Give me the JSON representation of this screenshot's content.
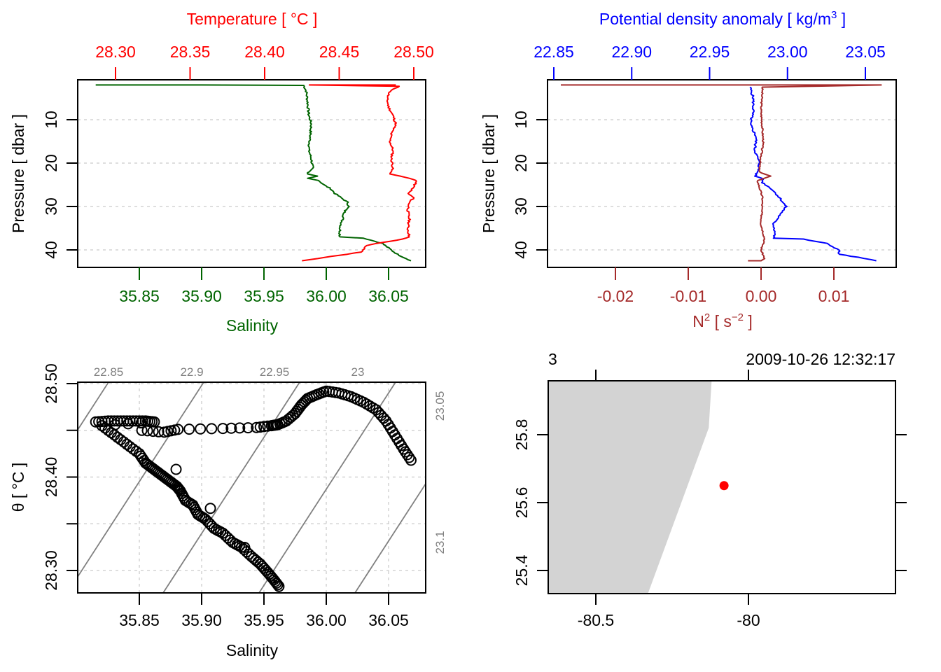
{
  "colors": {
    "temperature": "#ff0000",
    "salinity": "#006400",
    "density": "#0000ff",
    "n2": "#a52a2a",
    "isopycnal": "#808080",
    "land": "#d3d3d3",
    "station": "#ff0000",
    "grid": "#d3d3d3",
    "axis": "#000000"
  },
  "chart_data": [
    {
      "id": "ts-profile",
      "type": "line",
      "title": "",
      "top_axis": {
        "label": "Temperature [ °C ]",
        "ticks": [
          "28.30",
          "28.35",
          "28.40",
          "28.45",
          "28.50"
        ],
        "range": [
          28.275,
          28.507
        ]
      },
      "bottom_axis": {
        "label": "Salinity",
        "ticks": [
          "35.85",
          "35.90",
          "35.95",
          "36.00",
          "36.05"
        ],
        "range": [
          35.807,
          36.081
        ]
      },
      "y_axis": {
        "label": "Pressure [ dbar ]",
        "ticks": [
          "10",
          "20",
          "30",
          "40"
        ],
        "range": [
          1.0,
          43.8
        ],
        "reversed": true
      },
      "grid": "horizontal-dashed",
      "series": [
        {
          "name": "Temperature",
          "color_key": "temperature",
          "x_axis": "top",
          "points": [
            [
              28.488,
              2.0
            ],
            [
              28.45,
              2.0
            ],
            [
              28.43,
              2.0
            ],
            [
              28.49,
              2.3
            ],
            [
              28.484,
              3.5
            ],
            [
              28.482,
              5
            ],
            [
              28.483,
              7
            ],
            [
              28.486,
              9
            ],
            [
              28.488,
              11
            ],
            [
              28.485,
              13
            ],
            [
              28.484,
              15
            ],
            [
              28.486,
              17
            ],
            [
              28.485,
              19
            ],
            [
              28.486,
              21
            ],
            [
              28.484,
              22.5
            ],
            [
              28.491,
              23
            ],
            [
              28.497,
              23.5
            ],
            [
              28.502,
              24
            ],
            [
              28.499,
              26
            ],
            [
              28.496,
              27
            ],
            [
              28.5,
              28
            ],
            [
              28.497,
              29
            ],
            [
              28.496,
              31
            ],
            [
              28.497,
              33
            ],
            [
              28.496,
              35
            ],
            [
              28.497,
              37
            ],
            [
              28.493,
              37.5
            ],
            [
              28.475,
              38.5
            ],
            [
              28.468,
              39
            ],
            [
              28.465,
              40.5
            ],
            [
              28.445,
              41.5
            ],
            [
              28.425,
              42.5
            ]
          ]
        },
        {
          "name": "Salinity",
          "color_key": "salinity",
          "x_axis": "bottom",
          "points": [
            [
              35.815,
              2.0
            ],
            [
              35.9,
              2.0
            ],
            [
              35.982,
              2.1
            ],
            [
              35.984,
              3.5
            ],
            [
              35.985,
              6
            ],
            [
              35.986,
              9
            ],
            [
              35.988,
              11
            ],
            [
              35.987,
              14
            ],
            [
              35.986,
              17
            ],
            [
              35.988,
              19
            ],
            [
              35.989,
              21
            ],
            [
              35.985,
              22.5
            ],
            [
              35.993,
              23
            ],
            [
              35.985,
              23.5
            ],
            [
              35.994,
              24
            ],
            [
              35.998,
              25
            ],
            [
              36.004,
              26
            ],
            [
              36.007,
              27
            ],
            [
              36.012,
              28
            ],
            [
              36.017,
              29
            ],
            [
              36.018,
              30
            ],
            [
              36.015,
              31
            ],
            [
              36.013,
              33
            ],
            [
              36.011,
              35
            ],
            [
              36.011,
              37
            ],
            [
              36.03,
              37.3
            ],
            [
              36.045,
              38.5
            ],
            [
              36.052,
              40
            ],
            [
              36.057,
              41
            ],
            [
              36.068,
              42.5
            ]
          ]
        }
      ]
    },
    {
      "id": "density-n2-profile",
      "type": "line",
      "title": "",
      "top_axis": {
        "label": "Potential density anomaly [ kg/m³ ]",
        "label_parts": {
          "main": "Potential density anomaly [ kg/m",
          "sup": "3",
          "tail": " ]"
        },
        "ticks": [
          "22.85",
          "22.90",
          "22.95",
          "23.00",
          "23.05"
        ],
        "range": [
          22.848,
          23.06
        ]
      },
      "bottom_axis": {
        "label": "N² [ s⁻² ]",
        "label_parts": {
          "main": "N",
          "sup": "2",
          "mid": " [ s",
          "sup2": "−2",
          "tail": " ]"
        },
        "ticks": [
          "-0.02",
          "-0.01",
          "0.00",
          "0.01"
        ],
        "range": [
          -0.0294,
          0.0165
        ]
      },
      "y_axis": {
        "label": "Pressure [ dbar ]",
        "ticks": [
          "10",
          "20",
          "30",
          "40"
        ],
        "range": [
          1.0,
          43.8
        ],
        "reversed": true
      },
      "grid": "horizontal-dashed",
      "series": [
        {
          "name": "Potential density anomaly",
          "color_key": "density",
          "x_axis": "top",
          "points": [
            [
              22.976,
              2.5
            ],
            [
              22.978,
              5
            ],
            [
              22.978,
              8
            ],
            [
              22.976,
              11
            ],
            [
              22.98,
              14
            ],
            [
              22.979,
              17
            ],
            [
              22.982,
              20
            ],
            [
              22.981,
              22
            ],
            [
              22.979,
              23
            ],
            [
              22.984,
              23.5
            ],
            [
              22.984,
              24.5
            ],
            [
              22.99,
              26
            ],
            [
              22.995,
              28
            ],
            [
              22.999,
              30
            ],
            [
              22.995,
              32
            ],
            [
              22.991,
              34
            ],
            [
              22.992,
              36
            ],
            [
              22.991,
              37.3
            ],
            [
              23.01,
              37.5
            ],
            [
              23.025,
              38.5
            ],
            [
              23.033,
              40
            ],
            [
              23.033,
              41
            ],
            [
              23.045,
              41.7
            ],
            [
              23.057,
              42.5
            ]
          ]
        },
        {
          "name": "N2",
          "color_key": "n2",
          "x_axis": "bottom",
          "points": [
            [
              -0.0275,
              2.0
            ],
            [
              0.0165,
              2.0
            ],
            [
              0.0002,
              2.5
            ],
            [
              0.0,
              8
            ],
            [
              0.0003,
              15
            ],
            [
              -0.0003,
              22
            ],
            [
              0.0013,
              23
            ],
            [
              -0.0005,
              24
            ],
            [
              0.0002,
              28
            ],
            [
              0.0,
              34
            ],
            [
              0.0005,
              37.5
            ],
            [
              0.0,
              40
            ],
            [
              0.0005,
              42
            ],
            [
              0.0,
              42.5
            ],
            [
              -0.0018,
              42.5
            ]
          ]
        }
      ]
    },
    {
      "id": "ts-diagram",
      "type": "scatter",
      "title": "",
      "xlabel": "Salinity",
      "ylabel": "θ [ °C ]",
      "x_ticks": [
        "35.85",
        "35.90",
        "35.95",
        "36.00",
        "36.05"
      ],
      "y_ticks": [
        "28.30",
        "28.40",
        "28.50"
      ],
      "y_minor_ticks": [
        "28.35",
        "28.45"
      ],
      "xlim": [
        35.8,
        36.081
      ],
      "ylim": [
        28.275,
        28.501
      ],
      "grid": "dashed",
      "isopycnals": {
        "labels_top": [
          "22.85",
          "22.9",
          "22.95",
          "23"
        ],
        "labels_right": [
          "23.05",
          "23.1"
        ],
        "values": [
          22.85,
          22.9,
          22.95,
          23.0,
          23.05,
          23.1
        ]
      },
      "points": [
        [
          35.815,
          28.459
        ],
        [
          35.825,
          28.46
        ],
        [
          35.835,
          28.46
        ],
        [
          35.845,
          28.46
        ],
        [
          35.855,
          28.46
        ],
        [
          35.862,
          28.459
        ],
        [
          35.82,
          28.455
        ],
        [
          35.83,
          28.445
        ],
        [
          35.84,
          28.435
        ],
        [
          35.85,
          28.425
        ],
        [
          35.855,
          28.415
        ],
        [
          35.86,
          28.41
        ],
        [
          35.865,
          28.405
        ],
        [
          35.87,
          28.4
        ],
        [
          35.875,
          28.395
        ],
        [
          35.88,
          28.39
        ],
        [
          35.883,
          28.385
        ],
        [
          35.887,
          28.375
        ],
        [
          35.893,
          28.37
        ],
        [
          35.897,
          28.36
        ],
        [
          35.903,
          28.355
        ],
        [
          35.91,
          28.345
        ],
        [
          35.917,
          28.34
        ],
        [
          35.925,
          28.33
        ],
        [
          35.932,
          28.325
        ],
        [
          35.94,
          28.315
        ],
        [
          35.947,
          28.307
        ],
        [
          35.953,
          28.298
        ],
        [
          35.958,
          28.29
        ],
        [
          35.962,
          28.283
        ],
        [
          35.852,
          28.45
        ],
        [
          35.87,
          28.448
        ],
        [
          35.881,
          28.451
        ],
        [
          35.917,
          28.452
        ],
        [
          35.944,
          28.453
        ],
        [
          35.956,
          28.455
        ],
        [
          35.961,
          28.456
        ],
        [
          35.968,
          28.46
        ],
        [
          35.975,
          28.468
        ],
        [
          35.98,
          28.477
        ],
        [
          35.985,
          28.484
        ],
        [
          35.992,
          28.488
        ],
        [
          36.0,
          28.492
        ],
        [
          36.01,
          28.49
        ],
        [
          36.02,
          28.486
        ],
        [
          36.03,
          28.48
        ],
        [
          36.04,
          28.472
        ],
        [
          36.048,
          28.46
        ],
        [
          36.055,
          28.445
        ],
        [
          36.062,
          28.43
        ],
        [
          36.068,
          28.418
        ]
      ]
    },
    {
      "id": "station-map",
      "type": "scatter",
      "title": "",
      "top_left_label": "3",
      "top_right_label": "2009-10-26 12:32:17",
      "x_ticks": [
        "-80.5",
        "-80"
      ],
      "y_ticks": [
        "25.4",
        "25.6",
        "25.8"
      ],
      "xlim": [
        -80.66,
        -79.52
      ],
      "ylim": [
        25.33,
        25.97
      ],
      "land_polygon": [
        [
          -80.66,
          25.97
        ],
        [
          -80.12,
          25.97
        ],
        [
          -80.13,
          25.82
        ],
        [
          -80.33,
          25.33
        ],
        [
          -80.66,
          25.33
        ]
      ],
      "station": {
        "lon": -80.08,
        "lat": 25.65
      }
    }
  ]
}
